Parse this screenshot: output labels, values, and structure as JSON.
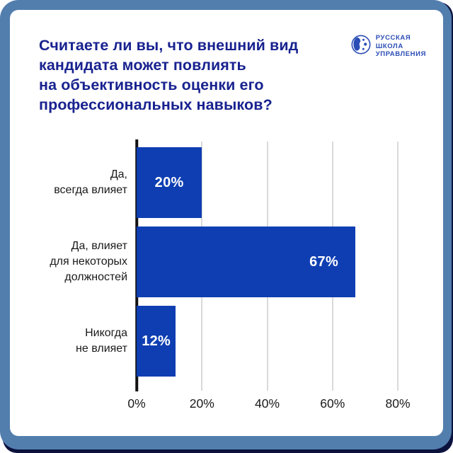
{
  "header": {
    "title": "Считаете ли вы, что внешний вид\nкандидата может повлиять\nна объективность оценки его\nпрофессиональных навыков?",
    "logo": {
      "icon": "globe-icon",
      "line1": "РУССКАЯ",
      "line2": "ШКОЛА",
      "line3": "УПРАВЛЕНИЯ"
    }
  },
  "chart_data": {
    "type": "bar",
    "orientation": "horizontal",
    "title": "Считаете ли вы, что внешний вид кандидата может повлиять на объективность оценки его профессиональных навыков?",
    "categories": [
      "Да,\nвсегда влияет",
      "Да, влияет\nдля некоторых\nдолжностей",
      "Никогда\nне влияет"
    ],
    "values": [
      20,
      67,
      12
    ],
    "value_labels": [
      "20%",
      "67%",
      "12%"
    ],
    "x_ticks": [
      "0%",
      "20%",
      "40%",
      "60%",
      "80%"
    ],
    "xlim": [
      0,
      80
    ],
    "grid": true,
    "legend": false,
    "xlabel": "",
    "ylabel": ""
  },
  "colors": {
    "frame_blue": "#527eae",
    "outer_navy": "#0b123d",
    "card_bg": "#ffffff",
    "title_text": "#18228f",
    "bar_fill": "#0e3eb2",
    "gridline": "#d9d9d9",
    "axis": "#111111",
    "category_text": "#1a1a1a",
    "value_text": "#ffffff",
    "logo_blue": "#2b4db5"
  }
}
